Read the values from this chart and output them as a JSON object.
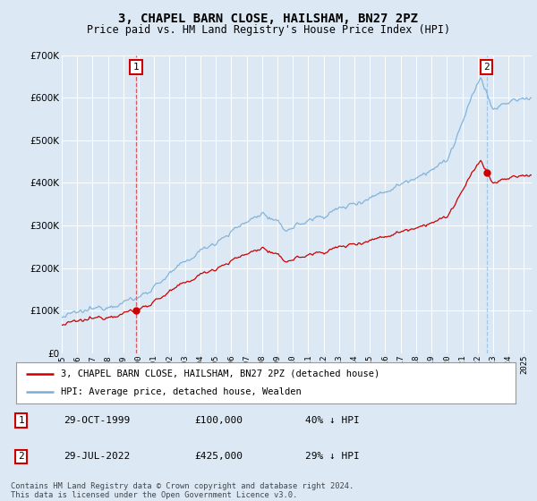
{
  "title": "3, CHAPEL BARN CLOSE, HAILSHAM, BN27 2PZ",
  "subtitle": "Price paid vs. HM Land Registry's House Price Index (HPI)",
  "background_color": "#dce9f5",
  "plot_bg_color": "#dce9f5",
  "hpi_color": "#7aaed6",
  "price_color": "#cc0000",
  "sale1_date": 1999.83,
  "sale1_price": 100000,
  "sale1_label": "1",
  "sale2_date": 2022.58,
  "sale2_price": 425000,
  "sale2_label": "2",
  "legend_line1": "3, CHAPEL BARN CLOSE, HAILSHAM, BN27 2PZ (detached house)",
  "legend_line2": "HPI: Average price, detached house, Wealden",
  "table_row1": [
    "1",
    "29-OCT-1999",
    "£100,000",
    "40% ↓ HPI"
  ],
  "table_row2": [
    "2",
    "29-JUL-2022",
    "£425,000",
    "29% ↓ HPI"
  ],
  "footnote": "Contains HM Land Registry data © Crown copyright and database right 2024.\nThis data is licensed under the Open Government Licence v3.0.",
  "ylim": [
    0,
    700000
  ],
  "xlim_start": 1995.0,
  "xlim_end": 2025.5
}
